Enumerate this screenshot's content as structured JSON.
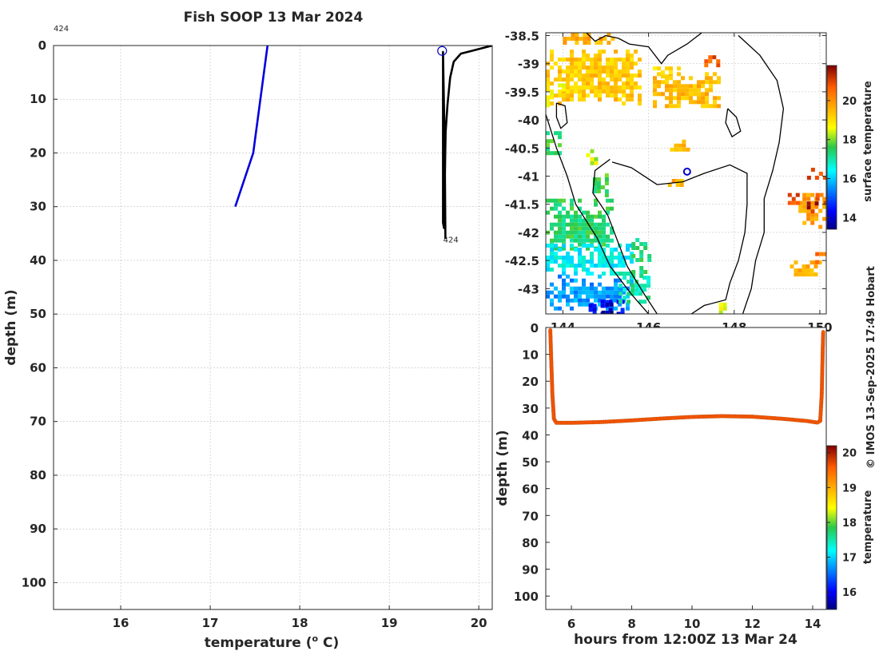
{
  "title": "Fish SOOP 13 Mar 2024",
  "copyright": "© IMOS 13-Sep-2025 17:49 Hobart",
  "chart_data": [
    {
      "type": "line",
      "name": "temperature-profile",
      "title": "Fish SOOP 13 Mar 2024",
      "xlabel": "temperature (° C)",
      "xlabel_parts": [
        "temperature (",
        "o",
        " C)"
      ],
      "ylabel": "depth (m)",
      "xlim": [
        15.25,
        20.15
      ],
      "ylim": [
        0,
        105
      ],
      "y_reversed": true,
      "xticks": [
        16,
        17,
        18,
        19,
        20
      ],
      "yticks": [
        0,
        10,
        20,
        30,
        40,
        50,
        60,
        70,
        80,
        90,
        100
      ],
      "grid": true,
      "annotations": [
        {
          "text": "424",
          "x": 15.25,
          "y": -2.2
        },
        {
          "text": "424",
          "x": 19.62,
          "y": 36.2
        }
      ],
      "marker": {
        "x": 19.59,
        "y": 1,
        "shape": "circle",
        "color": "#0000cc"
      },
      "series": [
        {
          "name": "reference",
          "color": "#0000dd",
          "x": [
            17.64,
            17.48,
            17.28
          ],
          "y": [
            0,
            20,
            30
          ]
        },
        {
          "name": "profile-424",
          "color": "#000000",
          "x": [
            20.15,
            19.92,
            19.8,
            19.72,
            19.68,
            19.65,
            19.63,
            19.625,
            19.622,
            19.62,
            19.615,
            19.612,
            19.61,
            19.612,
            19.6,
            19.6,
            19.62,
            19.625,
            19.627
          ],
          "y": [
            0,
            1,
            1.5,
            3,
            6,
            11,
            16,
            20,
            24,
            28,
            30,
            32,
            33,
            34,
            33,
            1.2,
            20,
            32,
            36
          ]
        }
      ]
    },
    {
      "type": "heatmap",
      "name": "surface-temperature-map",
      "xlim": [
        143.6,
        150.15
      ],
      "ylim": [
        -43.45,
        -38.45
      ],
      "xticks": [
        144,
        146,
        148,
        150
      ],
      "xtick_labels": [
        "144",
        "146",
        "148",
        "150"
      ],
      "yticks": [
        -38.5,
        -39,
        -39.5,
        -40,
        -40.5,
        -41,
        -41.5,
        -42,
        -42.5,
        -43
      ],
      "ytick_labels": [
        "-38.5",
        "-39",
        "-39.5",
        "-40",
        "-40.5",
        "-41",
        "-41.5",
        "-42",
        "-42.5",
        "-43"
      ],
      "colorbar": {
        "label": "surface temperature",
        "min": 13.4,
        "max": 21.8,
        "ticks": [
          14,
          16,
          18,
          20
        ],
        "tick_labels": [
          "14",
          "16",
          "18",
          "20"
        ]
      },
      "marker": {
        "lon": 146.9,
        "lat": -40.92,
        "color": "#0000cc"
      },
      "patches": [
        {
          "lon": [
            143.6,
            145.8
          ],
          "lat": [
            -39.7,
            -38.75
          ],
          "t": 19.3
        },
        {
          "lon": [
            144.0,
            145.2
          ],
          "lat": [
            -38.6,
            -38.45
          ],
          "t": 19.6
        },
        {
          "lon": [
            146.1,
            147.6
          ],
          "lat": [
            -39.75,
            -39.15
          ],
          "t": 19.5
        },
        {
          "lon": [
            147.3,
            147.6
          ],
          "lat": [
            -39.05,
            -38.85
          ],
          "t": 20.7
        },
        {
          "lon": [
            146.1,
            146.7
          ],
          "lat": [
            -39.2,
            -39.05
          ],
          "t": 18.9
        },
        {
          "lon": [
            143.6,
            143.9
          ],
          "lat": [
            -40.6,
            -40.2
          ],
          "t": 17.5
        },
        {
          "lon": [
            143.6,
            144.0
          ],
          "lat": [
            -39.75,
            -39.35
          ],
          "t": 18.7
        },
        {
          "lon": [
            146.5,
            146.9
          ],
          "lat": [
            -40.5,
            -40.35
          ],
          "t": 19.4
        },
        {
          "lon": [
            144.45,
            144.8
          ],
          "lat": [
            -40.8,
            -40.45
          ],
          "t": 18.4
        },
        {
          "lon": [
            144.7,
            145.0
          ],
          "lat": [
            -41.35,
            -40.95
          ],
          "t": 17.6
        },
        {
          "lon": [
            143.6,
            145.1
          ],
          "lat": [
            -42.3,
            -41.4
          ],
          "t": 17.4
        },
        {
          "lon": [
            143.6,
            145.6
          ],
          "lat": [
            -42.75,
            -42.2
          ],
          "t": 16.4
        },
        {
          "lon": [
            143.6,
            145.6
          ],
          "lat": [
            -43.35,
            -42.75
          ],
          "t": 15.6
        },
        {
          "lon": [
            144.6,
            145.4
          ],
          "lat": [
            -43.45,
            -43.2
          ],
          "t": 14.4
        },
        {
          "lon": [
            144.9,
            145.1
          ],
          "lat": [
            -43.4,
            -43.25
          ],
          "t": 13.6
        },
        {
          "lon": [
            145.3,
            146.0
          ],
          "lat": [
            -43.25,
            -42.7
          ],
          "t": 17.0
        },
        {
          "lon": [
            145.6,
            146.0
          ],
          "lat": [
            -42.75,
            -42.1
          ],
          "t": 17.3
        },
        {
          "lon": [
            146.45,
            146.75
          ],
          "lat": [
            -41.15,
            -41.05
          ],
          "t": 19.6
        },
        {
          "lon": [
            147.55,
            147.75
          ],
          "lat": [
            -43.45,
            -43.25
          ],
          "t": 18.6
        },
        {
          "lon": [
            149.5,
            150.15
          ],
          "lat": [
            -41.9,
            -41.3
          ],
          "t": 19.8
        },
        {
          "lon": [
            149.6,
            149.9
          ],
          "lat": [
            -41.7,
            -41.45
          ],
          "t": 21.3
        },
        {
          "lon": [
            149.9,
            150.15
          ],
          "lat": [
            -41.5,
            -41.3
          ],
          "t": 20.6
        },
        {
          "lon": [
            149.25,
            149.45
          ],
          "lat": [
            -41.45,
            -41.3
          ],
          "t": 20.9
        },
        {
          "lon": [
            149.7,
            150.15
          ],
          "lat": [
            -41.0,
            -40.85
          ],
          "t": 20.8
        },
        {
          "lon": [
            149.3,
            150.0
          ],
          "lat": [
            -42.75,
            -42.5
          ],
          "t": 19.6
        },
        {
          "lon": [
            149.8,
            150.1
          ],
          "lat": [
            -42.5,
            -42.35
          ],
          "t": 20.5
        }
      ]
    },
    {
      "type": "scatter",
      "name": "depth-time",
      "xlabel": "hours from 12:00Z 13 Mar 24",
      "ylabel": "depth (m)",
      "xlim": [
        5.15,
        14.45
      ],
      "ylim": [
        0,
        105
      ],
      "y_reversed": true,
      "xticks": [
        6,
        8,
        10,
        12,
        14
      ],
      "yticks": [
        0,
        10,
        20,
        30,
        40,
        50,
        60,
        70,
        80,
        90,
        100
      ],
      "colorbar": {
        "label": "temperature",
        "min": 15.5,
        "max": 20.2,
        "ticks": [
          16,
          17,
          18,
          19,
          20
        ],
        "tick_labels": [
          "16",
          "17",
          "18",
          "19",
          "20"
        ]
      },
      "series": [
        {
          "name": "track",
          "temperature": 19.6,
          "x": [
            5.3,
            5.33,
            5.37,
            5.42,
            5.5,
            6.0,
            7.0,
            8.0,
            9.0,
            10.0,
            11.0,
            12.0,
            13.0,
            13.8,
            14.15,
            14.25,
            14.3,
            14.33,
            14.35
          ],
          "y": [
            1,
            12,
            25,
            34,
            35.5,
            35.5,
            35.2,
            34.6,
            33.9,
            33.3,
            33.0,
            33.2,
            34.0,
            34.8,
            35.4,
            34.8,
            25,
            10,
            1
          ]
        }
      ]
    }
  ]
}
